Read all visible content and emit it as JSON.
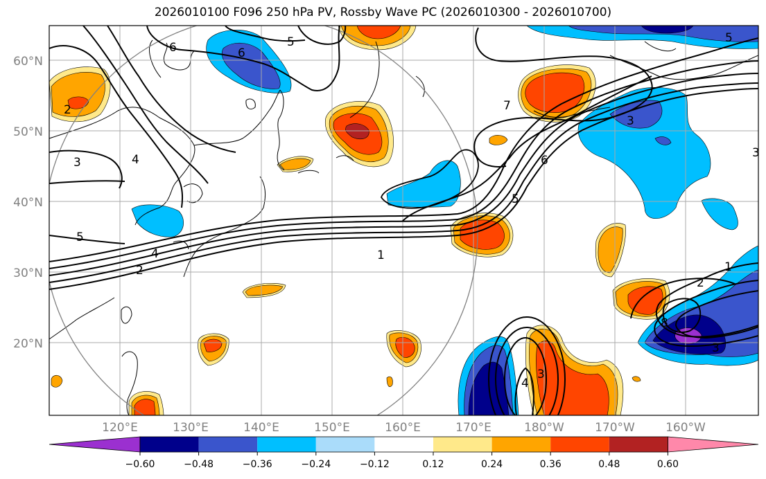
{
  "title": "2026010100 F096 250 hPa PV, Rossby Wave PC (2026010300 - 2026010700)",
  "map": {
    "lat_ticks": [
      "60°N",
      "50°N",
      "40°N",
      "30°N",
      "20°N"
    ],
    "lon_ticks": [
      "120°E",
      "130°E",
      "140°E",
      "150°E",
      "160°E",
      "170°E",
      "180°W",
      "170°W",
      "160°W"
    ],
    "contour_labels": [
      "5",
      "5",
      "6",
      "6",
      "2",
      "3",
      "3",
      "4",
      "4",
      "5",
      "2",
      "1",
      "1",
      "2",
      "3",
      "4",
      "3",
      "5",
      "6",
      "7",
      "3",
      "8"
    ]
  },
  "colorbar": {
    "colors": [
      "#9b30d0",
      "#00008b",
      "#3a55cc",
      "#00bfff",
      "#aadcfa",
      "#ffffff",
      "#ffe98a",
      "#ffa500",
      "#ff4500",
      "#b22222",
      "#ff88aa"
    ],
    "ticks": [
      "−0.60",
      "−0.48",
      "−0.36",
      "−0.24",
      "−0.12",
      "0.12",
      "0.24",
      "0.36",
      "0.48",
      "0.60"
    ]
  }
}
